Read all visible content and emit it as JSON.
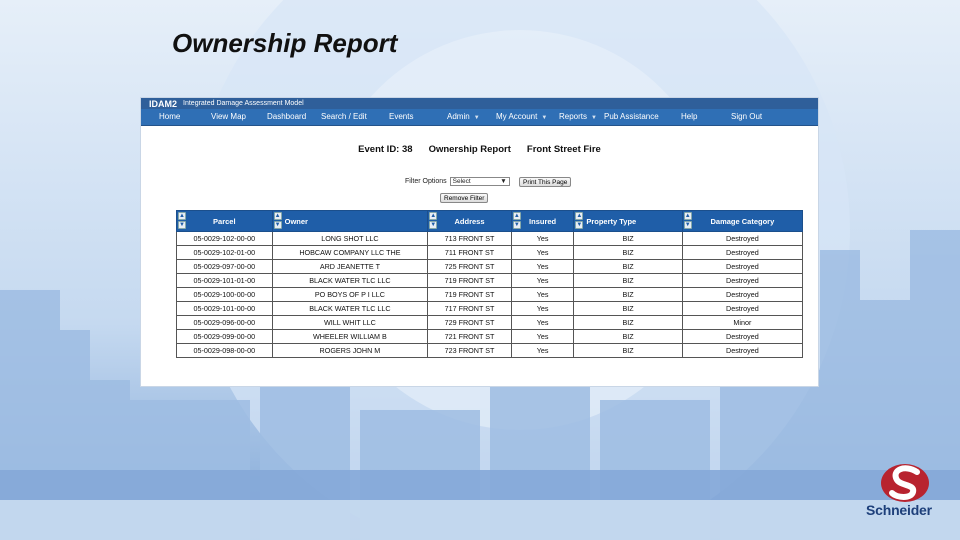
{
  "slide": {
    "title": "Ownership Report"
  },
  "app": {
    "brand": "IDAM2",
    "tagline": "Integrated Damage Assessment Model",
    "nav": [
      {
        "label": "Home"
      },
      {
        "label": "View Map"
      },
      {
        "label": "Dashboard"
      },
      {
        "label": "Search / Edit"
      },
      {
        "label": "Events"
      },
      {
        "label": "Admin"
      },
      {
        "label": "My Account"
      },
      {
        "label": "Reports"
      },
      {
        "label": "Pub Assistance"
      },
      {
        "label": "Help"
      },
      {
        "label": "Sign Out"
      }
    ]
  },
  "report": {
    "event_id": "Event ID: 38",
    "report_name": "Ownership Report",
    "event_name": "Front Street Fire",
    "filter_label": "Filter Options",
    "filter_value": "Select",
    "print_button": "Print This Page",
    "remove_filter_button": "Remove Filter"
  },
  "table": {
    "columns": [
      "Parcel",
      "Owner",
      "Address",
      "Insured",
      "Property Type",
      "Damage Category"
    ],
    "rows": [
      [
        "05-0029-102-00-00",
        "LONG SHOT LLC",
        "713 FRONT ST",
        "Yes",
        "BIZ",
        "Destroyed"
      ],
      [
        "05-0029-102-01-00",
        "HOBCAW COMPANY LLC THE",
        "711 FRONT ST",
        "Yes",
        "BIZ",
        "Destroyed"
      ],
      [
        "05-0029-097-00-00",
        "ARD JEANETTE T",
        "725 FRONT ST",
        "Yes",
        "BIZ",
        "Destroyed"
      ],
      [
        "05-0029-101-01-00",
        "BLACK WATER TLC LLC",
        "719 FRONT ST",
        "Yes",
        "BIZ",
        "Destroyed"
      ],
      [
        "05-0029-100-00-00",
        "PO BOYS OF P I LLC",
        "719 FRONT ST",
        "Yes",
        "BIZ",
        "Destroyed"
      ],
      [
        "05-0029-101-00-00",
        "BLACK WATER TLC LLC",
        "717 FRONT ST",
        "Yes",
        "BIZ",
        "Destroyed"
      ],
      [
        "05-0029-096-00-00",
        "WILL WHIT LLC",
        "729 FRONT ST",
        "Yes",
        "BIZ",
        "Minor"
      ],
      [
        "05-0029-099-00-00",
        "WHEELER WILLIAM B",
        "721 FRONT ST",
        "Yes",
        "BIZ",
        "Destroyed"
      ],
      [
        "05-0029-098-00-00",
        "ROGERS JOHN M",
        "723 FRONT ST",
        "Yes",
        "BIZ",
        "Destroyed"
      ]
    ]
  },
  "logo": {
    "text": "Schneider"
  },
  "colors": {
    "header_blue": "#1f5ea8",
    "nav_blue": "#2f6fb5",
    "logo_red": "#b8232f",
    "logo_blue": "#1d3f7a"
  },
  "icons": {
    "sort": "sort-arrows-icon",
    "dropdown": "chevron-down-icon"
  }
}
